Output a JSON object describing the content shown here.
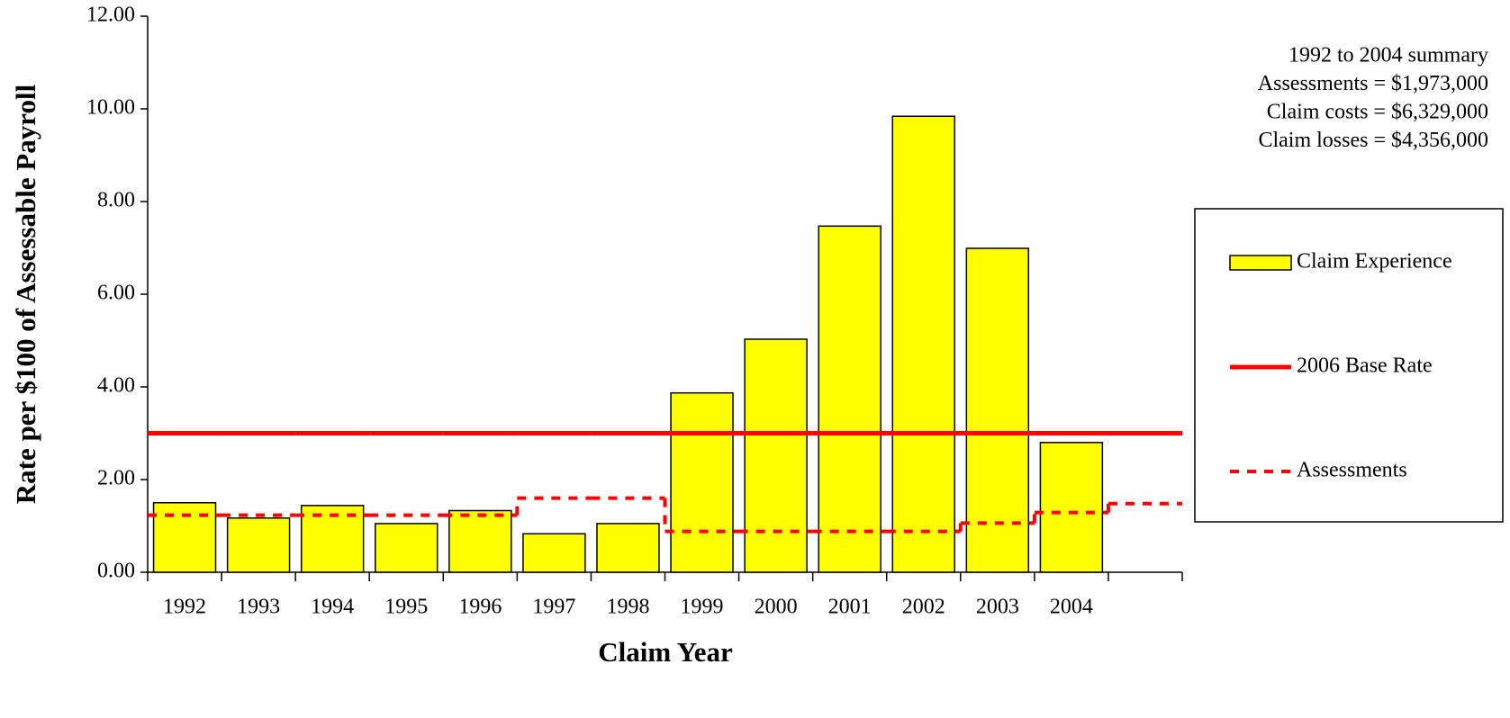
{
  "chart_data": {
    "type": "bar",
    "x_label": "Claim Year",
    "y_label": "Rate per $100 of Assessable Payroll",
    "categories": [
      "1992",
      "1993",
      "1994",
      "1995",
      "1996",
      "1997",
      "1998",
      "1999",
      "2000",
      "2001",
      "2002",
      "2003",
      "2004",
      null
    ],
    "series": [
      {
        "name": "Claim Experience",
        "type": "bar",
        "color": "#ffff00",
        "values": [
          1.5,
          1.17,
          1.44,
          1.05,
          1.33,
          0.83,
          1.05,
          3.87,
          5.03,
          7.47,
          9.84,
          6.99,
          2.8,
          null
        ]
      },
      {
        "name": "2006 Base Rate",
        "type": "step",
        "color": "#ff0000",
        "dashed": false,
        "values": [
          3.0,
          3.0,
          3.0,
          3.0,
          3.0,
          3.0,
          3.0,
          3.0,
          3.0,
          3.0,
          3.0,
          3.0,
          3.0,
          3.0
        ]
      },
      {
        "name": "Assessments",
        "type": "step",
        "color": "#ff0000",
        "dashed": true,
        "values": [
          1.23,
          1.23,
          1.23,
          1.23,
          1.23,
          1.6,
          1.6,
          0.88,
          0.88,
          0.88,
          0.88,
          1.06,
          1.29,
          1.48
        ]
      }
    ],
    "ylim": [
      0,
      12
    ],
    "yticks": [
      {
        "value": 0,
        "label": "0.00"
      },
      {
        "value": 2,
        "label": "2.00"
      },
      {
        "value": 4,
        "label": "4.00"
      },
      {
        "value": 6,
        "label": "6.00"
      },
      {
        "value": 8,
        "label": "8.00"
      },
      {
        "value": 10,
        "label": "10.00"
      },
      {
        "value": 12,
        "label": "12.00"
      }
    ],
    "annotations": [
      "1992 to 2004 summary",
      "Assessments = $1,973,000",
      "Claim costs = $6,329,000",
      "Claim losses = $4,356,000"
    ],
    "legend": "right"
  }
}
